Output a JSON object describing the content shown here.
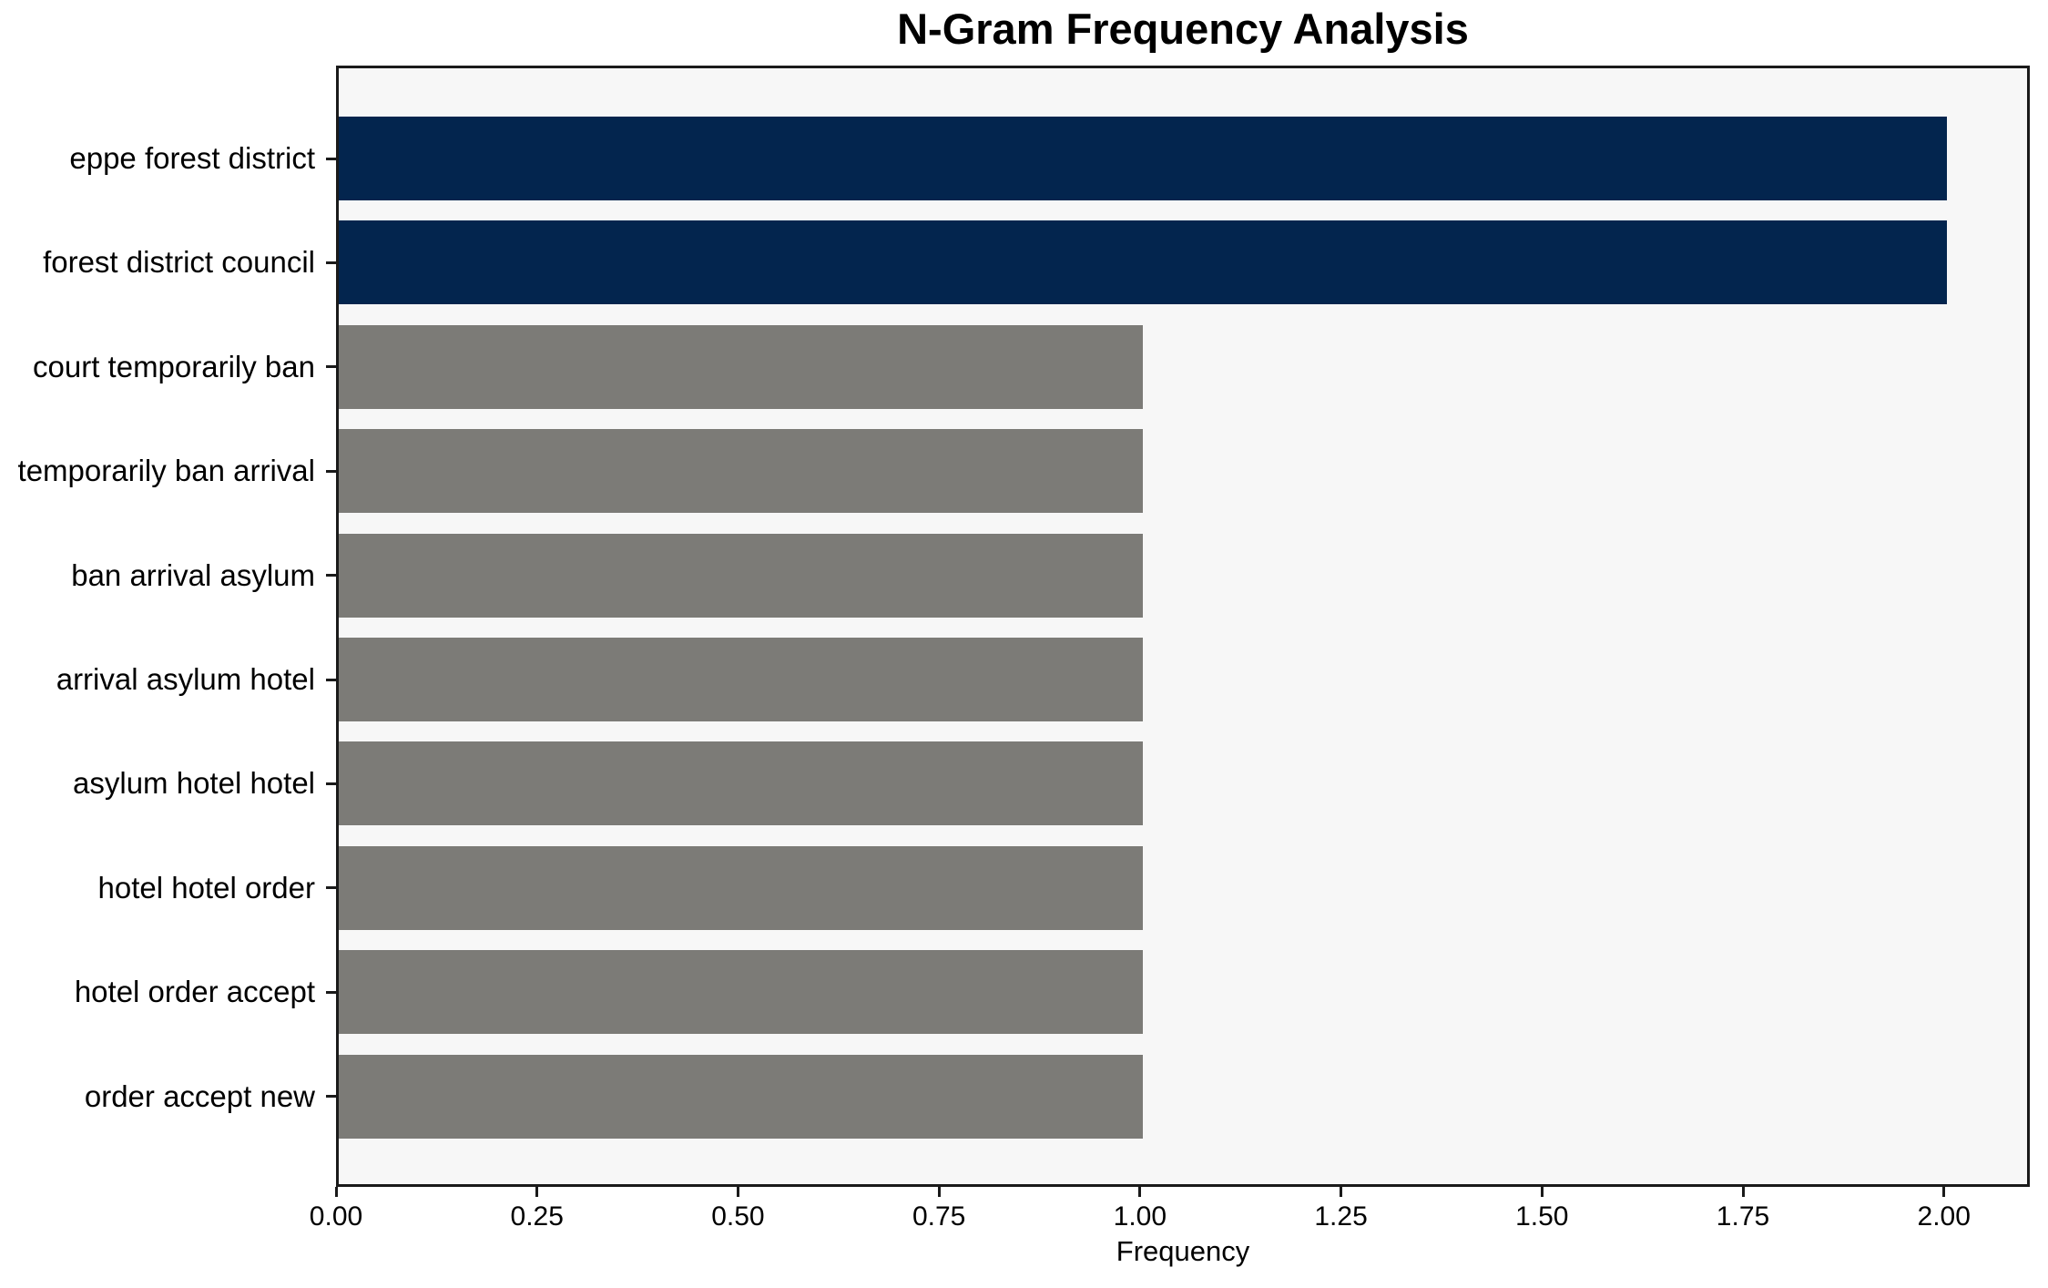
{
  "chart_data": {
    "type": "bar",
    "orientation": "horizontal",
    "title": "N-Gram Frequency Analysis",
    "xlabel": "Frequency",
    "ylabel": "",
    "categories": [
      "eppe forest district",
      "forest district council",
      "court temporarily ban",
      "temporarily ban arrival",
      "ban arrival asylum",
      "arrival asylum hotel",
      "asylum hotel hotel",
      "hotel hotel order",
      "hotel order accept",
      "order accept new"
    ],
    "values": [
      2,
      2,
      1,
      1,
      1,
      1,
      1,
      1,
      1,
      1
    ],
    "bar_colors": [
      "#03254e",
      "#03254e",
      "#7c7b77",
      "#7c7b77",
      "#7c7b77",
      "#7c7b77",
      "#7c7b77",
      "#7c7b77",
      "#7c7b77",
      "#7c7b77"
    ],
    "highlight_color": "#03254e",
    "default_color": "#7c7b77",
    "xlim": [
      0,
      2.1
    ],
    "xticks": [
      0,
      0.25,
      0.5,
      0.75,
      1.0,
      1.25,
      1.5,
      1.75,
      2.0
    ],
    "xtick_labels": [
      "0.00",
      "0.25",
      "0.50",
      "0.75",
      "1.00",
      "1.25",
      "1.50",
      "1.75",
      "2.00"
    ],
    "grid": false,
    "legend_position": "none",
    "plot_bg": "#f7f7f7",
    "figure_bg": "#ffffff"
  }
}
